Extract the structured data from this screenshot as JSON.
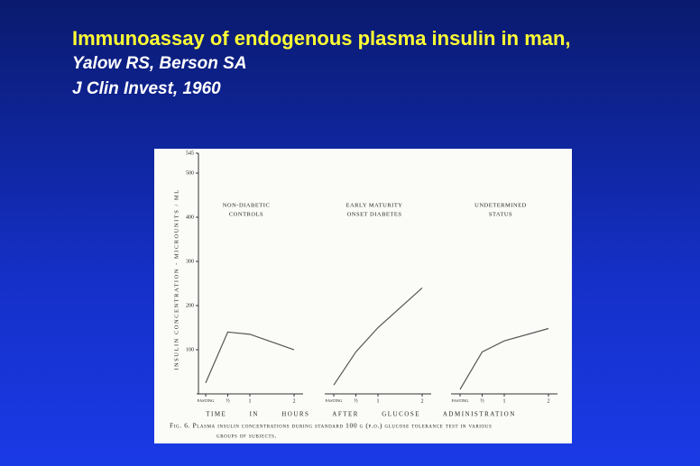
{
  "slide": {
    "title": "Immunoassay of endogenous plasma insulin in man,",
    "authors": "Yalow RS, Berson SA",
    "journal": "J Clin Invest, 1960"
  },
  "figure": {
    "xlabel": "TIME IN HOURS AFTER GLUCOSE ADMINISTRATION",
    "ylabel": "INSULIN CONCENTRATION - MICROUNITS / ML",
    "caption": [
      "Fig. 6. Plasma insulin concentrations during standard 100 g (p.o.) glucose tolerance test in various",
      "groups of subjects."
    ]
  },
  "chart_data": [
    {
      "type": "line",
      "title": [
        "NON-DIABETIC",
        "CONTROLS"
      ],
      "x": [
        0,
        0.5,
        1,
        2
      ],
      "values": [
        25,
        140,
        135,
        100
      ],
      "xticks": [
        {
          "value": 0,
          "label": "FASTING"
        },
        {
          "value": 0.5,
          "label": "½"
        },
        1,
        2
      ],
      "ylim": [
        0,
        545
      ],
      "yticks": [
        100,
        200,
        300,
        400,
        500,
        545
      ],
      "color": "#555"
    },
    {
      "type": "line",
      "title": [
        "EARLY   MATURITY",
        "ONSET   DIABETES"
      ],
      "x": [
        0,
        0.5,
        1,
        2
      ],
      "values": [
        20,
        95,
        150,
        240
      ],
      "xticks": [
        {
          "value": 0,
          "label": "FASTING"
        },
        {
          "value": 0.5,
          "label": "½"
        },
        1,
        2
      ],
      "color": "#555"
    },
    {
      "type": "line",
      "title": [
        "UNDETERMINED",
        "STATUS"
      ],
      "x": [
        0,
        0.5,
        1,
        2
      ],
      "values": [
        10,
        95,
        120,
        148
      ],
      "xticks": [
        {
          "value": 0,
          "label": "FASTING"
        },
        {
          "value": 0.5,
          "label": "½"
        },
        1,
        2
      ],
      "color": "#555"
    }
  ]
}
